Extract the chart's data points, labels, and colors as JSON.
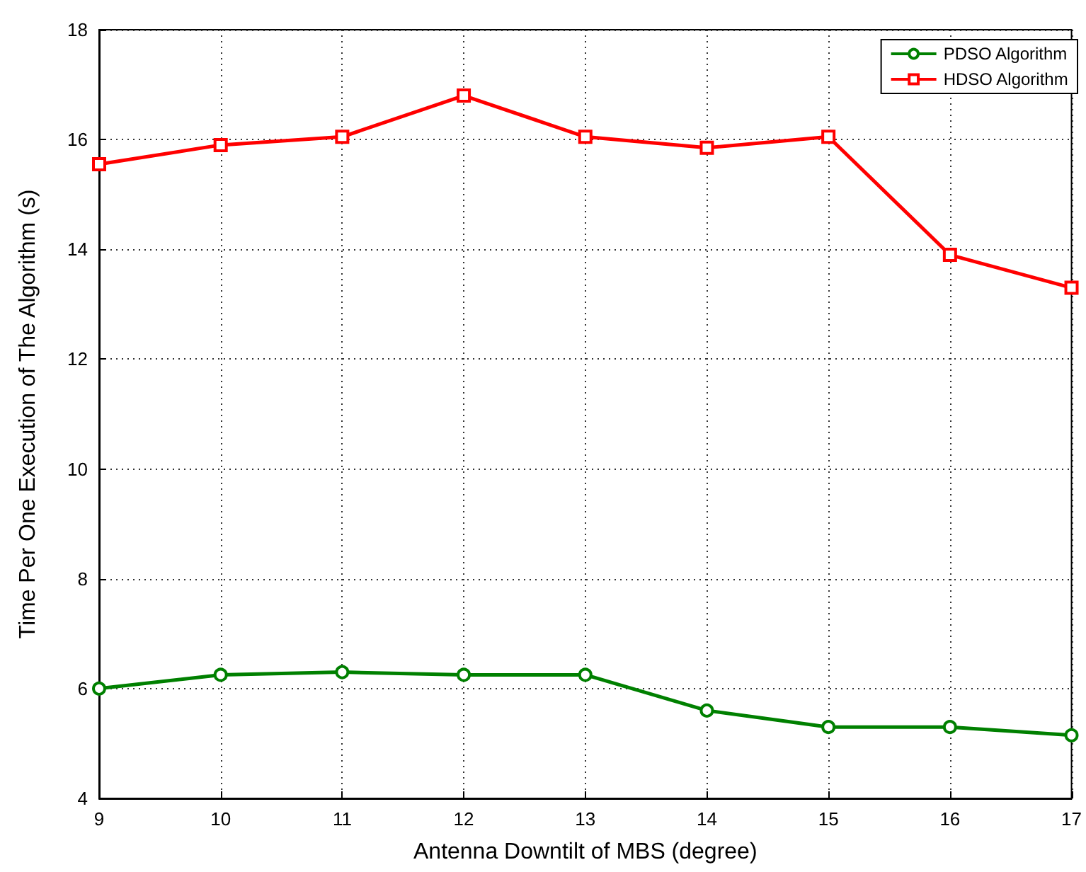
{
  "chart_data": {
    "type": "line",
    "xlabel": "Antenna Downtilt of MBS (degree)",
    "ylabel": "Time Per One Execution of The Algorithm (s)",
    "x": [
      9,
      10,
      11,
      12,
      13,
      14,
      15,
      16,
      17
    ],
    "series": [
      {
        "name": "PDSO Algorithm",
        "color": "#008000",
        "marker": "circle",
        "values": [
          6.0,
          6.25,
          6.3,
          6.25,
          6.25,
          5.6,
          5.3,
          5.3,
          5.15
        ]
      },
      {
        "name": "HDSO Algorithm",
        "color": "#ff0000",
        "marker": "square",
        "values": [
          15.55,
          15.9,
          16.05,
          16.8,
          16.05,
          15.85,
          16.05,
          13.9,
          13.3
        ]
      }
    ],
    "xlim": [
      9,
      17
    ],
    "xticks": [
      9,
      10,
      11,
      12,
      13,
      14,
      15,
      16,
      17
    ],
    "ylim": [
      4,
      18
    ],
    "yticks": [
      4,
      6,
      8,
      10,
      12,
      14,
      16,
      18
    ],
    "grid": true,
    "legend": "top right",
    "line_style": "solid"
  }
}
